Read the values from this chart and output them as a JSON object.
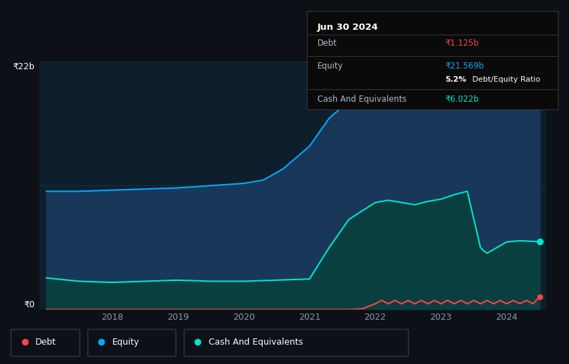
{
  "background_color": "#0d1117",
  "plot_bg_color": "#0d1f2d",
  "title": "Jun 30 2024",
  "tooltip": {
    "debt": "₹1.125b",
    "equity": "₹21.569b",
    "ratio": "5.2% Debt/Equity Ratio",
    "ratio_bold": "5.2%",
    "ratio_rest": " Debt/Equity Ratio",
    "cash": "₹6.022b"
  },
  "ylabel_top": "₹22b",
  "ylabel_bottom": "₹0",
  "x_ticks": [
    "2018",
    "2019",
    "2020",
    "2021",
    "2022",
    "2023",
    "2024"
  ],
  "equity_color": "#00aaff",
  "equity_fill": "#1a3a5c",
  "cash_color": "#00e5cc",
  "cash_fill": "#0a4040",
  "debt_color": "#ff4444",
  "legend_border": "#2a3a4a",
  "grid_color": "#1e3040",
  "equity_data": {
    "x": [
      2017.0,
      2017.5,
      2018.0,
      2018.5,
      2019.0,
      2019.5,
      2020.0,
      2020.3,
      2020.6,
      2021.0,
      2021.3,
      2021.6,
      2022.0,
      2022.3,
      2022.6,
      2023.0,
      2023.3,
      2023.6,
      2024.0,
      2024.3,
      2024.5
    ],
    "y": [
      10.5,
      10.5,
      10.6,
      10.7,
      10.8,
      11.0,
      11.2,
      11.5,
      12.5,
      14.5,
      17.0,
      18.5,
      19.5,
      20.0,
      20.3,
      20.6,
      20.9,
      21.1,
      21.3,
      21.5,
      21.569
    ]
  },
  "cash_data": {
    "x": [
      2017.0,
      2017.5,
      2018.0,
      2018.5,
      2019.0,
      2019.5,
      2020.0,
      2020.5,
      2021.0,
      2021.3,
      2021.6,
      2022.0,
      2022.2,
      2022.4,
      2022.6,
      2022.8,
      2023.0,
      2023.2,
      2023.4,
      2023.6,
      2023.65,
      2023.7,
      2024.0,
      2024.2,
      2024.5
    ],
    "y": [
      2.8,
      2.5,
      2.4,
      2.5,
      2.6,
      2.5,
      2.5,
      2.6,
      2.7,
      5.5,
      8.0,
      9.5,
      9.7,
      9.5,
      9.3,
      9.6,
      9.8,
      10.2,
      10.5,
      5.5,
      5.2,
      5.0,
      6.0,
      6.1,
      6.022
    ]
  },
  "debt_data": {
    "x": [
      2017.0,
      2018.0,
      2019.0,
      2020.0,
      2021.0,
      2021.3,
      2021.6,
      2021.8,
      2022.0,
      2022.1,
      2022.2,
      2022.3,
      2022.4,
      2022.5,
      2022.6,
      2022.7,
      2022.8,
      2022.9,
      2023.0,
      2023.1,
      2023.2,
      2023.3,
      2023.4,
      2023.5,
      2023.6,
      2023.7,
      2023.8,
      2023.9,
      2024.0,
      2024.1,
      2024.2,
      2024.3,
      2024.4,
      2024.5
    ],
    "y": [
      0.0,
      0.0,
      0.0,
      0.0,
      0.0,
      0.0,
      0.0,
      0.05,
      0.5,
      0.8,
      0.5,
      0.8,
      0.5,
      0.8,
      0.5,
      0.8,
      0.5,
      0.8,
      0.5,
      0.8,
      0.5,
      0.8,
      0.5,
      0.8,
      0.5,
      0.8,
      0.5,
      0.8,
      0.5,
      0.8,
      0.5,
      0.8,
      0.5,
      1.125
    ]
  },
  "ymax": 22,
  "xmin": 2016.9,
  "xmax": 2024.6
}
